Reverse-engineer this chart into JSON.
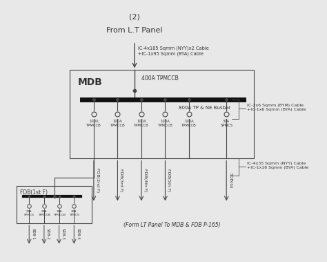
{
  "bg_color": "#e8e8e8",
  "title_num": "(2)",
  "from_label": "From L.T Panel",
  "cable_label_top": "IC-4x185 Sqmm (NYY)x2 Cable\n+IC-1x95 Sqmm (BYA) Cable",
  "mdb_label": "MDB",
  "mdb_tpmccb": "400A TPMCCB",
  "busbar_label": "800A TP & NE Busbar",
  "cable_label_mid1": "IC-2x6 Sqmm (BYM) Cable\n+IC-1x6 Sqmm (BYA) Cable",
  "cable_label_mid2": "IC-4x35 Sqmm (NYY) Cable\n+IC-1x16 Sqmm (BYA) Cable",
  "mdb_breaker_labels": [
    "100A\nTPMCCB",
    "100A\nTPMCCB",
    "100A\nTPMCCB",
    "100A\nTPMCCB",
    "100A\nTPMCCB",
    "30A\nSPMCS"
  ],
  "mdb_output_labels": [
    "FDB(2nd F)",
    "FDB(3rd F)",
    "FDB(4th F)",
    "FDB(5th F)",
    "SDB(G)"
  ],
  "fdb1_label": "FDB(1st F)",
  "fdb1_breaker_labels": [
    "20A\nSPMCS",
    "20A\nTPMCCB",
    "30A\nTPMCCB",
    "20A\nTPMCS"
  ],
  "fdb1_output_labels": [
    "SDB-1",
    "SDB-2",
    "SDB-3",
    "SDB-4"
  ],
  "bottom_note": "(Form LT Panel To MDB & FDB P-165)",
  "line_color": "#444444",
  "box_color": "#444444",
  "busbar_color": "#111111",
  "text_color": "#333333",
  "fig_w": 4.74,
  "fig_h": 3.79,
  "dpi": 100
}
